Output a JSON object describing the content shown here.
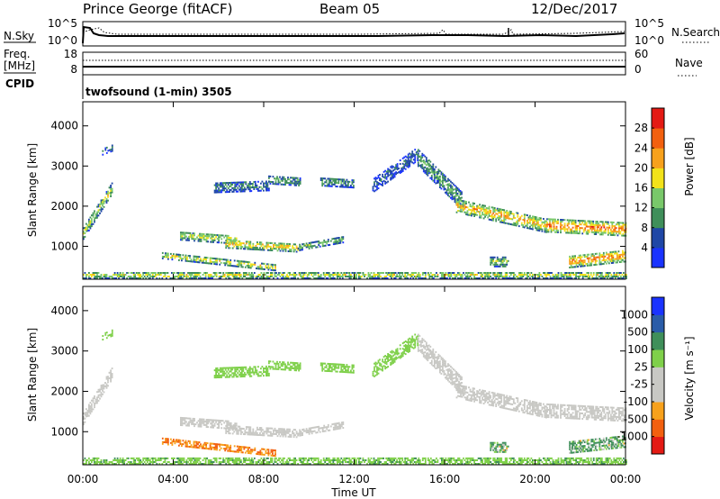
{
  "header": {
    "station": "Prince George (fitACF)",
    "beam": "Beam 05",
    "date": "12/Dec/2017"
  },
  "top_panels": {
    "nsky_label": "N.Sky",
    "nsearch_label": "N.Search",
    "noise_ticks": [
      "10^5",
      "10^0"
    ],
    "freq_label_line1": "Freq.",
    "freq_label_line2": "[MHz]",
    "freq_ticks": [
      "18",
      "8"
    ],
    "nave_ticks": [
      "60",
      "0"
    ],
    "nave_label": "Nave",
    "cpid_label": "CPID",
    "cpid_text": "twofsound (1-min) 3505"
  },
  "power_panel": {
    "ylabel": "Slant Range [km]",
    "yticks": [
      1000,
      2000,
      3000,
      4000
    ],
    "colorbar_label": "Power [dB]",
    "colorbar_ticks": [
      "4",
      "8",
      "12",
      "16",
      "20",
      "24",
      "28"
    ],
    "colors": [
      "#1a33ff",
      "#1f47a6",
      "#3f8f5a",
      "#79c86a",
      "#f2e21a",
      "#f7a11c",
      "#f2600f",
      "#e41a14"
    ]
  },
  "velocity_panel": {
    "ylabel": "Slant Range [km]",
    "yticks": [
      1000,
      2000,
      3000,
      4000
    ],
    "colorbar_label": "Velocity [m s⁻¹]",
    "colorbar_ticks": [
      "1000",
      "500",
      "100",
      "25",
      "-25",
      "-100",
      "-500",
      "-1000"
    ],
    "colors": [
      "#1a33ff",
      "#2a5ca8",
      "#3f8f5a",
      "#7fd04a",
      "#c8c8c4",
      "#c8c8c4",
      "#f7a11c",
      "#f2600f",
      "#e41a14"
    ]
  },
  "xaxis": {
    "label": "Time UT",
    "ticks": [
      "00:00",
      "04:00",
      "08:00",
      "12:00",
      "16:00",
      "20:00",
      "00:00"
    ]
  },
  "chart_data": {
    "type": "heatmap",
    "xlabel": "Time UT",
    "ylabel": "Slant Range [km]",
    "xlim_hours": [
      0,
      24
    ],
    "ylim_km": [
      180,
      4600
    ],
    "scatter_regions": [
      {
        "t0": 0.0,
        "t1": 1.3,
        "r_start": 1300,
        "r_end": 2450,
        "thick": 280,
        "power": 17,
        "vel": -25
      },
      {
        "t0": 0.85,
        "t1": 1.3,
        "r_start": 3350,
        "r_end": 3450,
        "thick": 180,
        "power": 8,
        "vel": 25
      },
      {
        "t0": 4.3,
        "t1": 6.8,
        "r_start": 1250,
        "r_end": 1150,
        "thick": 220,
        "power": 18,
        "vel": -25
      },
      {
        "t0": 6.3,
        "t1": 9.5,
        "r_start": 1050,
        "r_end": 950,
        "thick": 220,
        "power": 21,
        "vel": -25
      },
      {
        "t0": 3.5,
        "t1": 8.5,
        "r_start": 750,
        "r_end": 450,
        "thick": 150,
        "power": 19,
        "vel": -300
      },
      {
        "t0": 9.5,
        "t1": 11.5,
        "r_start": 950,
        "r_end": 1150,
        "thick": 150,
        "power": 14,
        "vel": -25
      },
      {
        "t0": 5.8,
        "t1": 8.2,
        "r_start": 2450,
        "r_end": 2500,
        "thick": 260,
        "power": 10,
        "vel": 25
      },
      {
        "t0": 8.2,
        "t1": 9.6,
        "r_start": 2650,
        "r_end": 2600,
        "thick": 220,
        "power": 12,
        "vel": 25
      },
      {
        "t0": 10.5,
        "t1": 12.0,
        "r_start": 2600,
        "r_end": 2550,
        "thick": 220,
        "power": 12,
        "vel": 25
      },
      {
        "t0": 12.8,
        "t1": 14.8,
        "r_start": 2500,
        "r_end": 3300,
        "thick": 350,
        "power": 8,
        "vel": 25
      },
      {
        "t0": 14.8,
        "t1": 16.8,
        "r_start": 3200,
        "r_end": 2100,
        "thick": 450,
        "power": 12,
        "vel": -25
      },
      {
        "t0": 16.5,
        "t1": 20.5,
        "r_start": 2000,
        "r_end": 1500,
        "thick": 350,
        "power": 22,
        "vel": -25
      },
      {
        "t0": 20.5,
        "t1": 24.0,
        "r_start": 1500,
        "r_end": 1400,
        "thick": 320,
        "power": 27,
        "vel": -25
      },
      {
        "t0": 21.5,
        "t1": 24.0,
        "r_start": 600,
        "r_end": 750,
        "thick": 300,
        "power": 25,
        "vel": 80
      },
      {
        "t0": 18.0,
        "t1": 18.8,
        "r_start": 600,
        "r_end": 600,
        "thick": 250,
        "power": 14,
        "vel": 80
      },
      {
        "t0": 0.0,
        "t1": 24.0,
        "r_start": 260,
        "r_end": 260,
        "thick": 160,
        "power": 18,
        "vel": 50
      }
    ]
  }
}
